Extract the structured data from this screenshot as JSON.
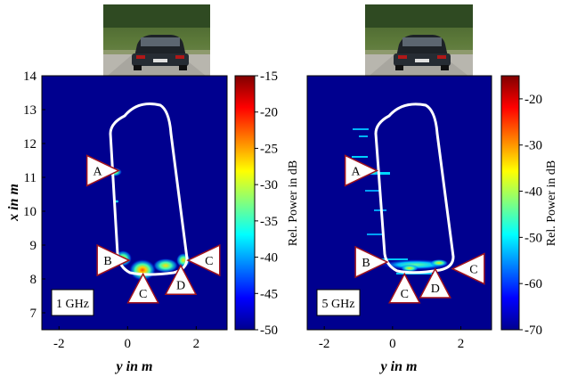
{
  "chart_data": [
    {
      "type": "heatmap",
      "panel_label": "1 GHz",
      "xlabel": "y in m",
      "ylabel": "x in m",
      "xlim": [
        -2.5,
        2.9
      ],
      "ylim": [
        6.5,
        14
      ],
      "xticks": [
        "-2",
        "0",
        "2"
      ],
      "yticks": [
        "7",
        "8",
        "9",
        "10",
        "11",
        "12",
        "13",
        "14"
      ],
      "colorbar": {
        "label": "Rel. Power in dB",
        "range": [
          -50,
          -15
        ],
        "ticks": [
          "-15",
          "-20",
          "-25",
          "-30",
          "-35",
          "-40",
          "-45",
          "-50"
        ]
      },
      "markers": [
        {
          "label": "A",
          "y": -0.7,
          "x": 11.2
        },
        {
          "label": "B",
          "y": -0.4,
          "x": 8.55
        },
        {
          "label": "C",
          "y": 0.45,
          "x": 7.7
        },
        {
          "label": "D",
          "y": 1.55,
          "x": 7.95
        },
        {
          "label": "C",
          "y": 2.2,
          "x": 8.55
        }
      ]
    },
    {
      "type": "heatmap",
      "panel_label": "5 GHz",
      "xlabel": "y in m",
      "ylabel": "",
      "xlim": [
        -2.5,
        2.9
      ],
      "ylim": [
        6.5,
        14
      ],
      "xticks": [
        "-2",
        "0",
        "2"
      ],
      "yticks": [],
      "colorbar": {
        "label": "Rel. Power in dB",
        "range": [
          -70,
          -15
        ],
        "ticks": [
          "-20",
          "-30",
          "-40",
          "-50",
          "-60",
          "-70"
        ]
      },
      "markers": [
        {
          "label": "A",
          "y": -0.9,
          "x": 11.2
        },
        {
          "label": "B",
          "y": -0.6,
          "x": 8.5
        },
        {
          "label": "C",
          "y": 0.35,
          "x": 7.7
        },
        {
          "label": "D",
          "y": 1.25,
          "x": 7.85
        },
        {
          "label": "C",
          "y": 2.2,
          "x": 8.3
        }
      ]
    }
  ]
}
